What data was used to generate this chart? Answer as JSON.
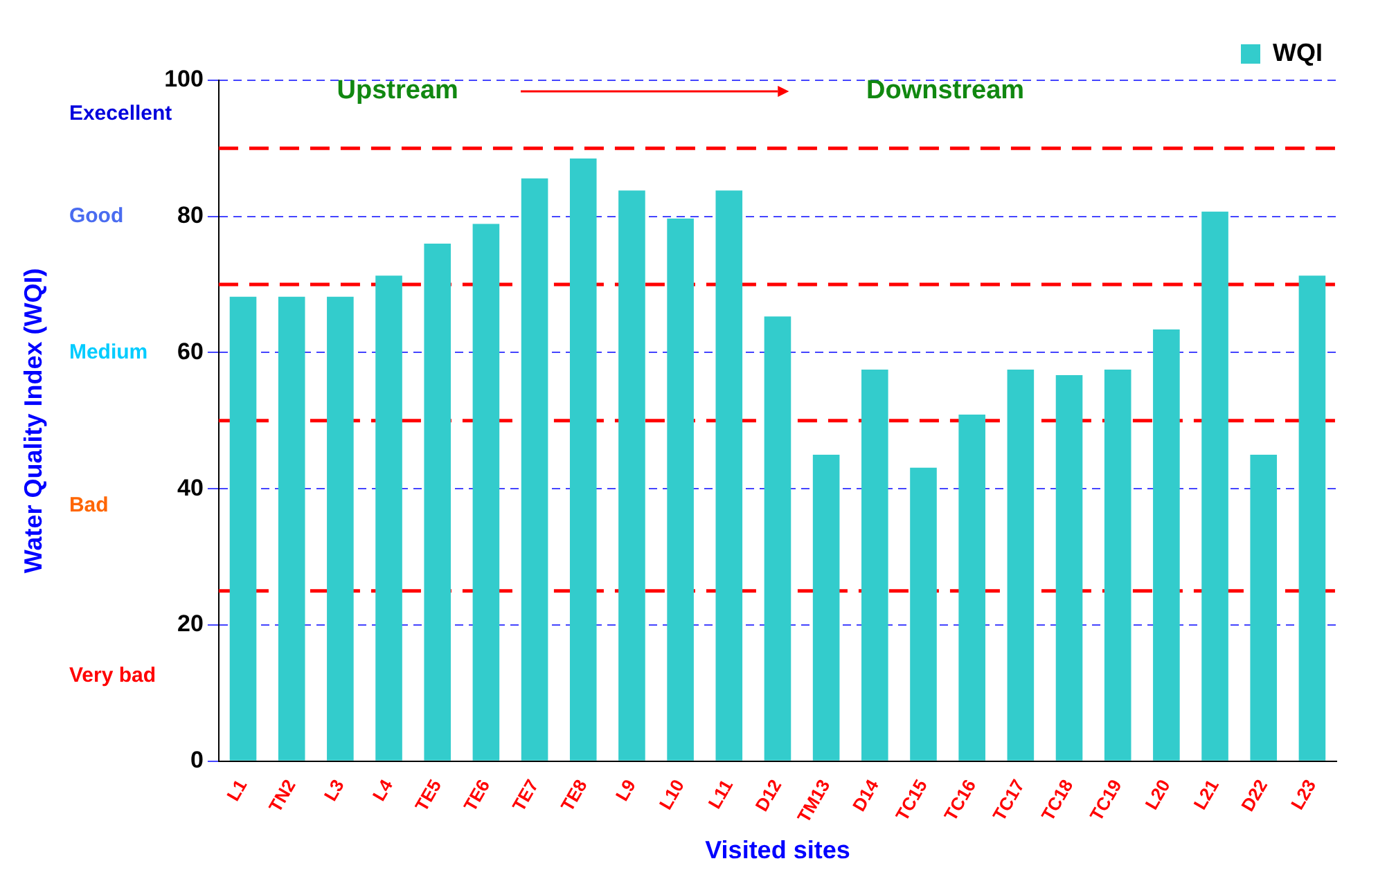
{
  "chart_data": {
    "type": "bar",
    "xlabel": "Visited sites",
    "ylabel": "Water Quality Index (WQI)",
    "categories": [
      "L1",
      "TN2",
      "L3",
      "L4",
      "TE5",
      "TE6",
      "TE7",
      "TE8",
      "L9",
      "L10",
      "L11",
      "D12",
      "TM13",
      "D14",
      "TC15",
      "TC16",
      "TC17",
      "TC18",
      "TC19",
      "L20",
      "L21",
      "D22",
      "L23"
    ],
    "series": [
      {
        "name": "WQI",
        "color": "#33cccc",
        "values": [
          68.2,
          68.2,
          68.2,
          71.3,
          76.0,
          78.9,
          85.6,
          88.5,
          83.8,
          79.7,
          83.8,
          65.3,
          45.0,
          57.5,
          43.1,
          50.9,
          57.5,
          56.7,
          57.5,
          63.4,
          80.7,
          45.0,
          71.3
        ]
      }
    ],
    "ylim": [
      0,
      100
    ],
    "yticks": [
      0,
      20,
      40,
      60,
      80,
      100
    ],
    "grid": "y",
    "legend": "top right",
    "ref_lines": [
      {
        "axis": "y",
        "value": 90,
        "color": "#ff0000",
        "line_style": "dashed"
      },
      {
        "axis": "y",
        "value": 70,
        "color": "#ff0000",
        "line_style": "dashed"
      },
      {
        "axis": "y",
        "value": 50,
        "color": "#ff0000",
        "line_style": "dashed"
      },
      {
        "axis": "y",
        "value": 25,
        "color": "#ff0000",
        "line_style": "dashed"
      }
    ],
    "annotations": [
      "Execellent",
      "Good",
      "Medium",
      "Bad",
      "Very bad",
      "Upstream",
      "Downstream"
    ]
  }
}
